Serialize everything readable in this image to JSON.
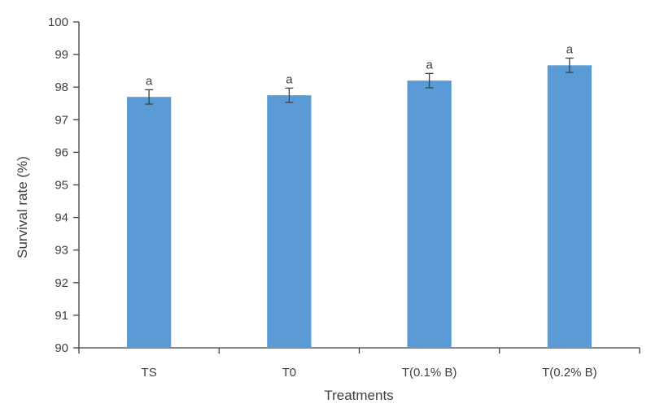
{
  "chart_data": {
    "type": "bar",
    "title": "",
    "xlabel": "Treatments",
    "ylabel": "Survival rate (%)",
    "categories": [
      "TS",
      "T0",
      "T(0.1% B)",
      "T(0.2% B)"
    ],
    "values": [
      97.7,
      97.75,
      98.2,
      98.67
    ],
    "error": [
      0.22,
      0.22,
      0.22,
      0.22
    ],
    "data_labels": [
      "a",
      "a",
      "a",
      "a"
    ],
    "ylim": [
      90,
      100
    ],
    "yticks": [
      90,
      91,
      92,
      93,
      94,
      95,
      96,
      97,
      98,
      99,
      100
    ],
    "grid": false,
    "legend": "none",
    "bar_color": "#5B9BD5",
    "axis_color": "#404040"
  }
}
